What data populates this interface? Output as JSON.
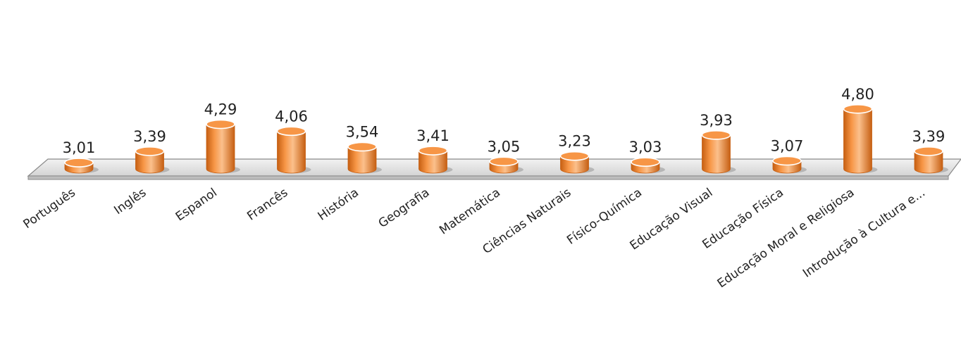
{
  "chart_data": {
    "type": "bar",
    "style": "3d-cylinder",
    "categories": [
      "Português",
      "Inglês",
      "Espanol",
      "Francês",
      "História",
      "Geografia",
      "Matemática",
      "Ciências Naturais",
      "Físico-Química",
      "Educação Visual",
      "Educação Física",
      "Educação Moral e Religiosa",
      "Introdução à Cultura e..."
    ],
    "values": [
      3.01,
      3.39,
      4.29,
      4.06,
      3.54,
      3.41,
      3.05,
      3.23,
      3.03,
      3.93,
      3.07,
      4.8,
      3.39
    ],
    "value_labels": [
      "3,01",
      "3,39",
      "4,29",
      "4,06",
      "3,54",
      "3,41",
      "3,05",
      "3,23",
      "3,03",
      "3,93",
      "3,07",
      "4,80",
      "3,39"
    ],
    "title": "",
    "xlabel": "",
    "ylabel": "",
    "ylim": [
      0,
      5
    ],
    "grid": false,
    "legend": "none",
    "colors": {
      "bar": "#f79646",
      "bar_dark": "#c65f12",
      "bar_light": "#fbc08c",
      "floor": "#e3e3e3",
      "floor_edge": "#8a8a8a"
    }
  }
}
